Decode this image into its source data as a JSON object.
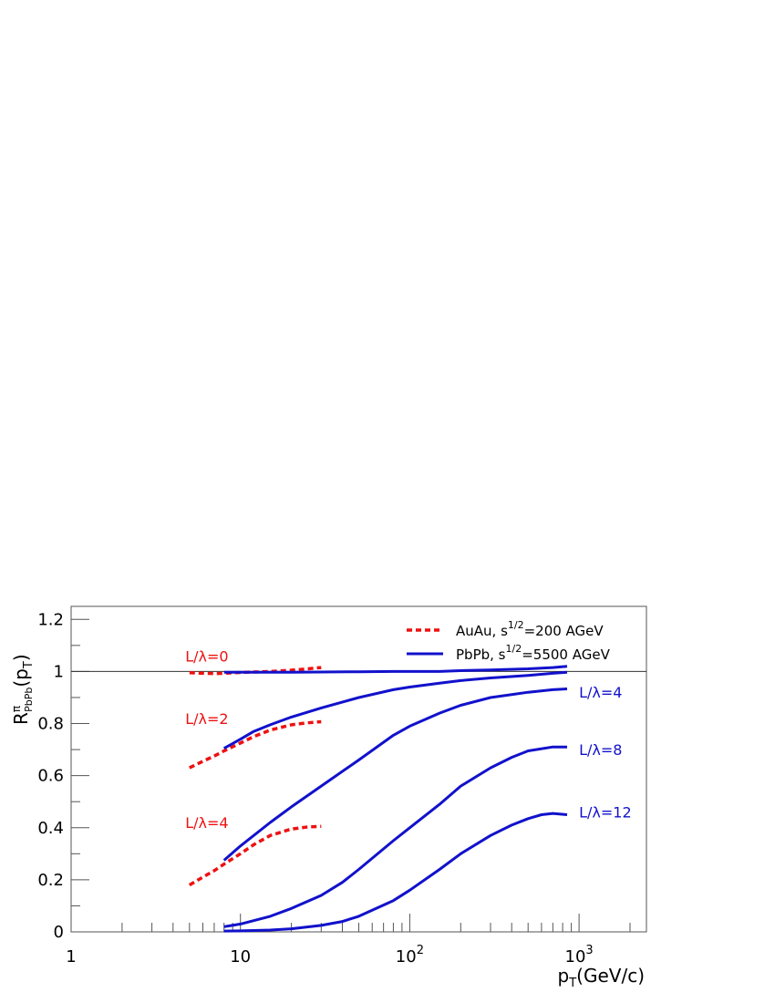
{
  "chart_data": {
    "type": "line",
    "x_scale": "log",
    "xlim": [
      1,
      2500
    ],
    "ylim": [
      0,
      1.25
    ],
    "x_ticks": [
      {
        "value": 1,
        "base": "1",
        "exp": ""
      },
      {
        "value": 10,
        "base": "10",
        "exp": ""
      },
      {
        "value": 100,
        "base": "10",
        "exp": "2"
      },
      {
        "value": 1000,
        "base": "10",
        "exp": "3"
      }
    ],
    "y_ticks": [
      {
        "value": 0,
        "label": "0"
      },
      {
        "value": 0.2,
        "label": "0.2"
      },
      {
        "value": 0.4,
        "label": "0.4"
      },
      {
        "value": 0.6,
        "label": "0.6"
      },
      {
        "value": 0.8,
        "label": "0.8"
      },
      {
        "value": 1,
        "label": "1"
      },
      {
        "value": 1.2,
        "label": "1.2"
      }
    ],
    "xlabel": {
      "main": "p",
      "sub": "T",
      "rest": "(GeV/c)"
    },
    "ylabel": {
      "main": "R",
      "sup": "π",
      "sub": "PbPb",
      "rest": "(p",
      "sub2": "T",
      "close": ")"
    },
    "reference_line_y": 1,
    "legend": {
      "placement": "top-right",
      "entries": [
        {
          "text": "AuAu, s",
          "sup": "1/2",
          "tail": "=200 AGeV",
          "style": "dashed",
          "color": "#ee1111"
        },
        {
          "text": "PbPb, s",
          "sup": "1/2",
          "tail": "=5500 AGeV",
          "style": "solid",
          "color": "#1111cc"
        }
      ]
    },
    "series": [
      {
        "group": "AuAu",
        "style": "dashed",
        "color": "#ee1111",
        "x": [
          5,
          6,
          7,
          8,
          10,
          12,
          15,
          20,
          25,
          30
        ],
        "y": [
          0.995,
          0.993,
          0.992,
          0.993,
          0.996,
          0.998,
          1.0,
          1.005,
          1.01,
          1.015
        ]
      },
      {
        "group": "AuAu",
        "style": "dashed",
        "color": "#ee1111",
        "x": [
          5,
          6,
          7,
          8,
          10,
          12,
          15,
          20,
          25,
          30
        ],
        "y": [
          0.63,
          0.655,
          0.675,
          0.695,
          0.725,
          0.75,
          0.775,
          0.795,
          0.803,
          0.807
        ]
      },
      {
        "group": "AuAu",
        "style": "dashed",
        "color": "#ee1111",
        "x": [
          5,
          6,
          7,
          8,
          10,
          12,
          15,
          20,
          25,
          30
        ],
        "y": [
          0.18,
          0.21,
          0.235,
          0.26,
          0.3,
          0.335,
          0.37,
          0.395,
          0.403,
          0.405
        ]
      },
      {
        "group": "PbPb",
        "style": "solid",
        "color": "#1111cc",
        "x": [
          8,
          10,
          15,
          20,
          30,
          50,
          80,
          100,
          150,
          200,
          300,
          500,
          700,
          850
        ],
        "y": [
          0.997,
          0.997,
          0.997,
          0.997,
          0.998,
          0.999,
          1.0,
          1.0,
          1.0,
          1.003,
          1.006,
          1.01,
          1.015,
          1.02
        ]
      },
      {
        "group": "PbPb",
        "style": "solid",
        "color": "#1111cc",
        "x": [
          8,
          10,
          12,
          15,
          20,
          30,
          50,
          80,
          100,
          150,
          200,
          300,
          500,
          700,
          850
        ],
        "y": [
          0.705,
          0.74,
          0.77,
          0.795,
          0.825,
          0.86,
          0.9,
          0.93,
          0.94,
          0.955,
          0.965,
          0.975,
          0.985,
          0.993,
          0.997
        ]
      },
      {
        "group": "PbPb",
        "style": "solid",
        "color": "#1111cc",
        "x": [
          8,
          10,
          15,
          20,
          30,
          50,
          80,
          100,
          150,
          200,
          300,
          500,
          700,
          850
        ],
        "y": [
          0.275,
          0.33,
          0.42,
          0.48,
          0.56,
          0.66,
          0.755,
          0.79,
          0.84,
          0.87,
          0.9,
          0.92,
          0.93,
          0.933
        ]
      },
      {
        "group": "PbPb",
        "style": "solid",
        "color": "#1111cc",
        "x": [
          8,
          10,
          15,
          20,
          30,
          40,
          50,
          80,
          100,
          150,
          200,
          300,
          400,
          500,
          700,
          850
        ],
        "y": [
          0.02,
          0.03,
          0.06,
          0.09,
          0.14,
          0.19,
          0.24,
          0.35,
          0.4,
          0.49,
          0.56,
          0.63,
          0.67,
          0.695,
          0.71,
          0.71
        ]
      },
      {
        "group": "PbPb",
        "style": "solid",
        "color": "#1111cc",
        "x": [
          8,
          10,
          15,
          20,
          30,
          40,
          50,
          80,
          100,
          150,
          200,
          300,
          400,
          500,
          600,
          700,
          850
        ],
        "y": [
          0.003,
          0.004,
          0.007,
          0.012,
          0.025,
          0.04,
          0.06,
          0.12,
          0.16,
          0.24,
          0.3,
          0.37,
          0.41,
          0.435,
          0.45,
          0.455,
          0.45
        ]
      }
    ],
    "annotations": [
      {
        "text": "L/λ=0",
        "x": 8.5,
        "y": 1.06,
        "color": "#ee1111",
        "anchor": "end"
      },
      {
        "text": "L/λ=2",
        "x": 8.5,
        "y": 0.82,
        "color": "#ee1111",
        "anchor": "end"
      },
      {
        "text": "L/λ=4",
        "x": 8.5,
        "y": 0.42,
        "color": "#ee1111",
        "anchor": "end"
      },
      {
        "text": "L/λ=4",
        "x": 1000,
        "y": 0.92,
        "color": "#1111cc",
        "anchor": "start"
      },
      {
        "text": "L/λ=8",
        "x": 1000,
        "y": 0.7,
        "color": "#1111cc",
        "anchor": "start"
      },
      {
        "text": "L/λ=12",
        "x": 1000,
        "y": 0.46,
        "color": "#1111cc",
        "anchor": "start"
      }
    ]
  }
}
